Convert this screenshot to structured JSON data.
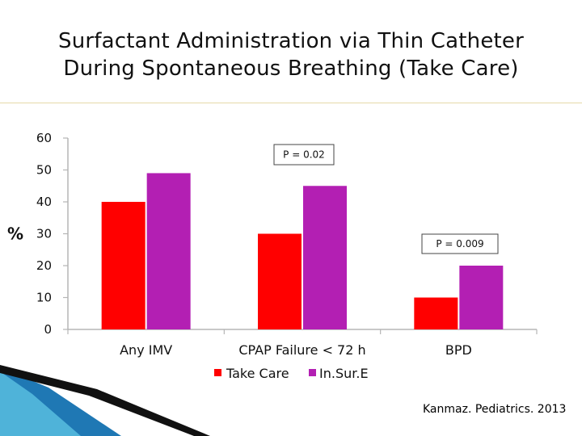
{
  "title_line1": "Surfactant Administration via Thin Catheter",
  "title_line2": "During Spontaneous Breathing (Take Care)",
  "citation": "Kanmaz. Pediatrics. 2013",
  "colors": {
    "take_care": "#ff0000",
    "insure": "#b31fb3",
    "title_rule": "#e6d9a8",
    "grid": "#b5b5b5"
  },
  "chart_data": {
    "type": "bar",
    "ylabel": "%",
    "ylim": [
      0,
      60
    ],
    "yticks": [
      0,
      10,
      20,
      30,
      40,
      50,
      60
    ],
    "grid": false,
    "legend_position": "bottom",
    "categories": [
      "Any IMV",
      "CPAP Failure < 72 h",
      "BPD"
    ],
    "series": [
      {
        "name": "Take Care",
        "values": [
          40,
          30,
          10
        ]
      },
      {
        "name": "In.Sur.E",
        "values": [
          49,
          45,
          20
        ]
      }
    ],
    "annotations": [
      {
        "text": "P = 0.02",
        "category": "CPAP Failure < 72 h"
      },
      {
        "text": "P = 0.009",
        "category": "BPD"
      }
    ]
  }
}
